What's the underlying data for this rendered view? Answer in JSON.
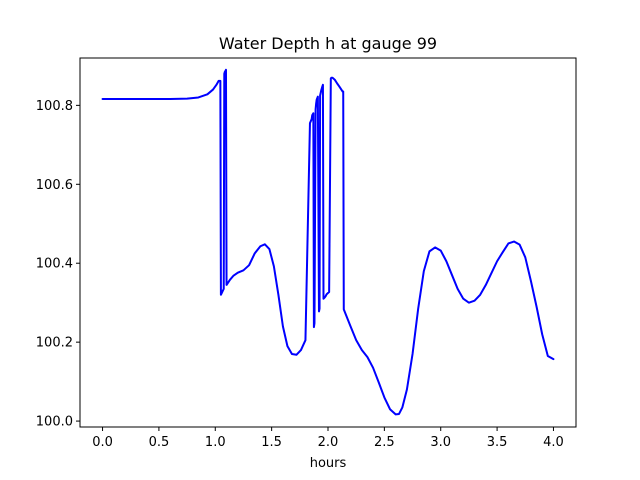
{
  "chart_data": {
    "type": "line",
    "title": "Water Depth h at gauge 99",
    "xlabel": "hours",
    "ylabel": "",
    "xlim": [
      -0.2,
      4.2
    ],
    "ylim": [
      99.985,
      100.92
    ],
    "xticks": [
      0.0,
      0.5,
      1.0,
      1.5,
      2.0,
      2.5,
      3.0,
      3.5,
      4.0
    ],
    "xtick_labels": [
      "0.0",
      "0.5",
      "1.0",
      "1.5",
      "2.0",
      "2.5",
      "3.0",
      "3.5",
      "4.0"
    ],
    "yticks": [
      100.0,
      100.2,
      100.4,
      100.6,
      100.8
    ],
    "ytick_labels": [
      "100.0",
      "100.2",
      "100.4",
      "100.6",
      "100.8"
    ],
    "grid": false,
    "legend": "none",
    "colors": {
      "line": "#0000ff",
      "frame": "#000000",
      "background": "#ffffff"
    },
    "series": [
      {
        "x": [
          0.0,
          0.2,
          0.4,
          0.6,
          0.75,
          0.85,
          0.93,
          0.98,
          1.01,
          1.03,
          1.045,
          1.05,
          1.075,
          1.08,
          1.085,
          1.09,
          1.095,
          1.1,
          1.13,
          1.16,
          1.2,
          1.25,
          1.3,
          1.35,
          1.4,
          1.44,
          1.48,
          1.52,
          1.56,
          1.6,
          1.64,
          1.68,
          1.72,
          1.76,
          1.8,
          1.84,
          1.855,
          1.86,
          1.87,
          1.875,
          1.88,
          1.89,
          1.895,
          1.9,
          1.91,
          1.92,
          1.925,
          1.93,
          1.94,
          1.95,
          1.955,
          1.96,
          1.97,
          1.98,
          1.985,
          1.99,
          2.01,
          2.025,
          2.03,
          2.04,
          2.06,
          2.08,
          2.1,
          2.13,
          2.135,
          2.14,
          2.2,
          2.25,
          2.3,
          2.35,
          2.4,
          2.45,
          2.5,
          2.55,
          2.6,
          2.63,
          2.66,
          2.7,
          2.75,
          2.8,
          2.85,
          2.9,
          2.95,
          3.0,
          3.05,
          3.1,
          3.15,
          3.2,
          3.25,
          3.3,
          3.35,
          3.4,
          3.45,
          3.5,
          3.55,
          3.6,
          3.65,
          3.7,
          3.75,
          3.8,
          3.85,
          3.9,
          3.95,
          4.0
        ],
        "y": [
          100.816,
          100.816,
          100.816,
          100.816,
          100.817,
          100.82,
          100.828,
          100.84,
          100.852,
          100.862,
          100.862,
          100.32,
          100.335,
          100.88,
          100.885,
          100.887,
          100.89,
          100.345,
          100.358,
          100.368,
          100.376,
          100.382,
          100.395,
          100.425,
          100.443,
          100.448,
          100.436,
          100.392,
          100.32,
          100.24,
          100.19,
          100.17,
          100.168,
          100.18,
          100.205,
          100.755,
          100.765,
          100.775,
          100.78,
          100.238,
          100.248,
          100.79,
          100.805,
          100.815,
          100.822,
          100.278,
          100.285,
          100.825,
          100.838,
          100.848,
          100.852,
          100.31,
          100.313,
          100.317,
          100.32,
          100.322,
          100.327,
          100.868,
          100.87,
          100.87,
          100.865,
          100.856,
          100.848,
          100.835,
          100.835,
          100.283,
          100.24,
          100.205,
          100.18,
          100.162,
          100.135,
          100.098,
          100.06,
          100.03,
          100.017,
          100.018,
          100.035,
          100.08,
          100.17,
          100.285,
          100.38,
          100.43,
          100.44,
          100.432,
          100.405,
          100.37,
          100.335,
          100.31,
          100.3,
          100.305,
          100.32,
          100.345,
          100.375,
          100.405,
          100.428,
          100.45,
          100.455,
          100.447,
          100.415,
          100.355,
          100.29,
          100.22,
          100.165,
          100.157
        ]
      }
    ]
  }
}
